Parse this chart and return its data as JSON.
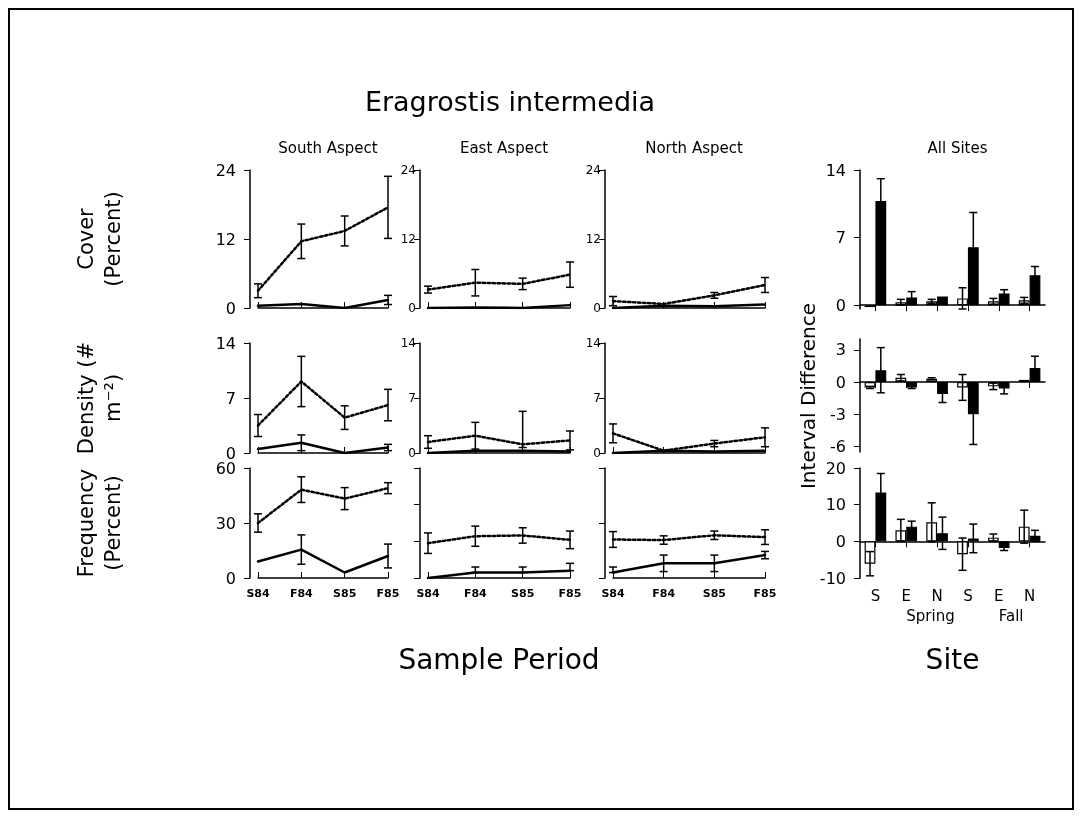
{
  "chart_data": [
    {
      "type": "line",
      "title": "South Aspect",
      "ylabel": "Cover (Percent)",
      "categories": [
        null,
        null,
        null,
        null
      ],
      "series": [
        {
          "color": "#000000",
          "line_style": "dotted",
          "values": [
            3,
            11.6,
            13.4,
            17.5
          ],
          "errors": [
            1.2,
            3,
            2.6,
            5.4
          ]
        },
        {
          "color": "#000000",
          "line_style": "solid",
          "values": [
            0.4,
            0.7,
            0,
            1.4
          ],
          "errors": [
            null,
            null,
            null,
            0.8
          ]
        }
      ],
      "ylim": [
        0,
        24
      ],
      "yticks": [
        0,
        12,
        24
      ],
      "tick_labels": "y",
      "marker": "none"
    },
    {
      "type": "line",
      "title": "Eragrostis intermedia",
      "subtitle": "East Aspect",
      "categories": [
        null,
        null,
        null,
        null
      ],
      "series": [
        {
          "color": "#000000",
          "line_style": "dotted",
          "values": [
            3.2,
            4.4,
            4.2,
            5.8
          ],
          "errors": [
            0.6,
            2.3,
            1,
            2.2
          ]
        },
        {
          "color": "#000000",
          "line_style": "solid",
          "values": [
            0,
            0.1,
            0,
            0.5
          ]
        }
      ],
      "ylim": [
        0,
        24
      ],
      "yticks": [
        0,
        12,
        24
      ],
      "tick_labels": "y",
      "marker": "none"
    },
    {
      "type": "line",
      "title": "North Aspect",
      "categories": [
        null,
        null,
        null,
        null
      ],
      "series": [
        {
          "color": "#000000",
          "line_style": "dotted",
          "values": [
            1.2,
            0.7,
            2.2,
            4
          ],
          "errors": [
            0.8,
            null,
            0.5,
            1.3
          ]
        },
        {
          "color": "#000000",
          "line_style": "solid",
          "values": [
            0,
            0.4,
            0.3,
            0.6
          ]
        }
      ],
      "ylim": [
        0,
        24
      ],
      "yticks": [
        0,
        12,
        24
      ],
      "tick_labels": "y",
      "marker": "none"
    },
    {
      "type": "line",
      "ylabel": "Density (# m⁻²)",
      "categories": [
        null,
        null,
        null,
        null
      ],
      "series": [
        {
          "color": "#000000",
          "line_style": "dotted",
          "values": [
            3.5,
            9.1,
            4.5,
            6.1
          ],
          "errors": [
            1.4,
            3.2,
            1.5,
            2
          ]
        },
        {
          "color": "#000000",
          "line_style": "solid",
          "values": [
            0.5,
            1.3,
            0,
            0.7
          ],
          "errors": [
            null,
            1,
            null,
            0.4
          ]
        }
      ],
      "ylim": [
        0,
        14
      ],
      "yticks": [
        0,
        7,
        14
      ],
      "tick_labels": "y",
      "marker": "none"
    },
    {
      "type": "line",
      "categories": [
        null,
        null,
        null,
        null
      ],
      "series": [
        {
          "color": "#000000",
          "line_style": "dotted",
          "values": [
            1.4,
            2.2,
            1.1,
            1.6
          ],
          "errors": [
            0.8,
            1.7,
            [
              0.7,
              5.3
            ],
            1.2
          ]
        },
        {
          "color": "#000000",
          "line_style": "solid",
          "values": [
            0,
            0.3,
            0.3,
            0.2
          ]
        }
      ],
      "ylim": [
        0,
        14
      ],
      "yticks": [
        0,
        7,
        14
      ],
      "tick_labels": "y",
      "marker": "none"
    },
    {
      "type": "line",
      "categories": [
        null,
        null,
        null,
        null
      ],
      "series": [
        {
          "color": "#000000",
          "line_style": "dotted",
          "values": [
            2.5,
            0.3,
            1.2,
            2
          ],
          "errors": [
            1.2,
            null,
            0.4,
            1.2
          ]
        },
        {
          "color": "#000000",
          "line_style": "solid",
          "values": [
            0,
            0.3,
            0.2,
            0.3
          ]
        }
      ],
      "ylim": [
        0,
        14
      ],
      "yticks": [
        0,
        7,
        14
      ],
      "tick_labels": "y",
      "marker": "none"
    },
    {
      "type": "line",
      "ylabel": "Frequency (Percent)",
      "categories": [
        "S84",
        "F84",
        "S85",
        "F85"
      ],
      "series": [
        {
          "color": "#000000",
          "line_style": "dotted",
          "values": [
            30,
            48.2,
            43.3,
            49
          ],
          "errors": [
            5,
            7,
            6,
            3
          ]
        },
        {
          "color": "#000000",
          "line_style": "solid",
          "values": [
            9,
            15.5,
            3,
            12
          ],
          "errors": [
            null,
            8,
            null,
            6.5
          ]
        }
      ],
      "ylim": [
        0,
        60
      ],
      "yticks": [
        0,
        30,
        60
      ],
      "marker": "none"
    },
    {
      "type": "line",
      "xlabel": "Sample Period",
      "categories": [
        "S84",
        "F84",
        "S85",
        "F85"
      ],
      "series": [
        {
          "color": "#000000",
          "line_style": "dotted",
          "values": [
            19,
            22.8,
            23.2,
            20.8
          ],
          "errors": [
            5.6,
            5.5,
            4.2,
            4.8
          ]
        },
        {
          "color": "#000000",
          "line_style": "solid",
          "values": [
            0,
            3,
            3,
            4
          ],
          "errors": [
            null,
            [
              3,
              6
            ],
            [
              3,
              6
            ],
            [
              4,
              8
            ]
          ]
        }
      ],
      "ylim": [
        0,
        60
      ],
      "yticks": [
        0,
        20,
        40,
        60
      ],
      "tick_labels": "x",
      "marker": "none"
    },
    {
      "type": "line",
      "categories": [
        "S84",
        "F84",
        "S85",
        "F85"
      ],
      "series": [
        {
          "color": "#000000",
          "line_style": "dotted",
          "values": [
            21,
            20.7,
            23.3,
            22.3
          ],
          "errors": [
            4.3,
            2.3,
            2.3,
            4
          ]
        },
        {
          "color": "#000000",
          "line_style": "solid",
          "values": [
            3,
            8,
            8,
            12.5
          ],
          "errors": [
            [
              3,
              6
            ],
            4.5,
            4.5,
            2
          ]
        }
      ],
      "ylim": [
        0,
        60
      ],
      "yticks": [
        0,
        30,
        60
      ],
      "tick_labels": "x",
      "marker": "none"
    },
    {
      "type": "bar",
      "title": "All Sites",
      "categories": [
        null,
        null,
        null,
        null,
        null,
        null
      ],
      "series": [
        {
          "color": "#ffffff",
          "values": [
            -0.2,
            0.3,
            0.4,
            0.7,
            0.4,
            0.5
          ],
          "errors": [
            null,
            0.3,
            0.2,
            1.1,
            0.3,
            0.3
          ]
        },
        {
          "color": "#000000",
          "values": [
            10.8,
            0.8,
            0.9,
            6.0,
            1.2,
            3.1
          ],
          "errors": [
            2.3,
            0.6,
            null,
            3.6,
            0.4,
            0.9
          ]
        }
      ],
      "ylim": [
        -0.4,
        14
      ],
      "yticks": [
        0,
        7,
        14
      ],
      "tick_labels": "y"
    },
    {
      "type": "bar",
      "ylabel": "Interval Difference",
      "categories": [
        null,
        null,
        null,
        null,
        null,
        null
      ],
      "series": [
        {
          "color": "#ffffff",
          "values": [
            -0.5,
            0.4,
            0.3,
            -0.5,
            -0.4,
            0.2
          ],
          "errors": [
            0.1,
            0.3,
            0.1,
            1.2,
            0.3,
            null
          ]
        },
        {
          "color": "#000000",
          "values": [
            1.1,
            -0.5,
            -1.1,
            -3.0,
            -0.6,
            1.3
          ],
          "errors": [
            2.1,
            0.1,
            0.8,
            2.8,
            0.5,
            1.1
          ]
        }
      ],
      "ylim": [
        -6.5,
        4
      ],
      "yticks": [
        -6,
        -3,
        0,
        3
      ],
      "tick_labels": "y"
    },
    {
      "type": "bar",
      "xlabel": "Site",
      "annotations": [
        "Spring",
        "Fall"
      ],
      "categories": [
        "S",
        "E",
        "N",
        "S",
        "E",
        "N"
      ],
      "series": [
        {
          "color": "#ffffff",
          "values": [
            -6.1,
            3.0,
            5.2,
            -3.5,
            1.0,
            4.0
          ],
          "errors": [
            3.3,
            3.0,
            5.3,
            4.4,
            1.0,
            4.5
          ]
        },
        {
          "color": "#000000",
          "values": [
            13.3,
            4.0,
            2.2,
            0.8,
            -1.8,
            1.5
          ],
          "errors": [
            5.2,
            1.5,
            4.4,
            3.9,
            0.7,
            1.5
          ]
        }
      ],
      "ylim": [
        -10,
        20
      ],
      "yticks": [
        -10,
        0,
        10,
        20
      ]
    }
  ]
}
